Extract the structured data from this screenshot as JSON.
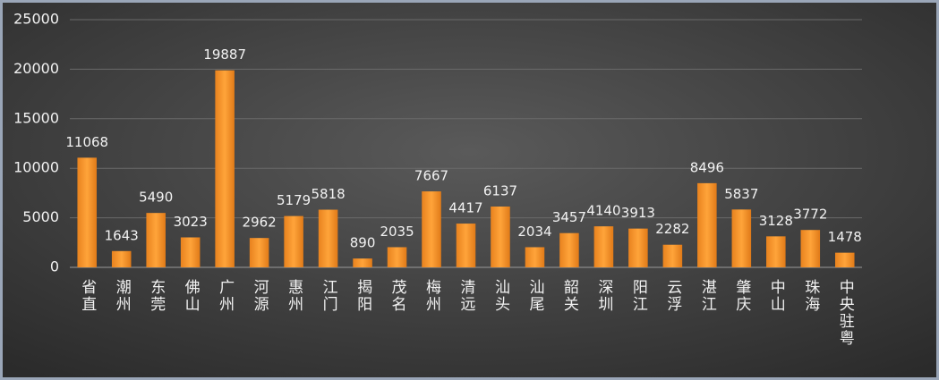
{
  "chart_data": {
    "type": "bar",
    "categories": [
      "省直",
      "潮州",
      "东莞",
      "佛山",
      "广州",
      "河源",
      "惠州",
      "江门",
      "揭阳",
      "茂名",
      "梅州",
      "清远",
      "汕头",
      "汕尾",
      "韶关",
      "深圳",
      "阳江",
      "云浮",
      "湛江",
      "肇庆",
      "中山",
      "珠海",
      "中央驻粤"
    ],
    "values": [
      11068,
      1643,
      5490,
      3023,
      19887,
      2962,
      5179,
      5818,
      890,
      2035,
      7667,
      4417,
      6137,
      2034,
      3457,
      4140,
      3913,
      2282,
      8496,
      5837,
      3128,
      3772,
      1478
    ],
    "color": "#f7941d",
    "ylim": [
      0,
      25000
    ],
    "yticks": [
      0,
      5000,
      10000,
      15000,
      20000,
      25000
    ],
    "grid": true
  }
}
